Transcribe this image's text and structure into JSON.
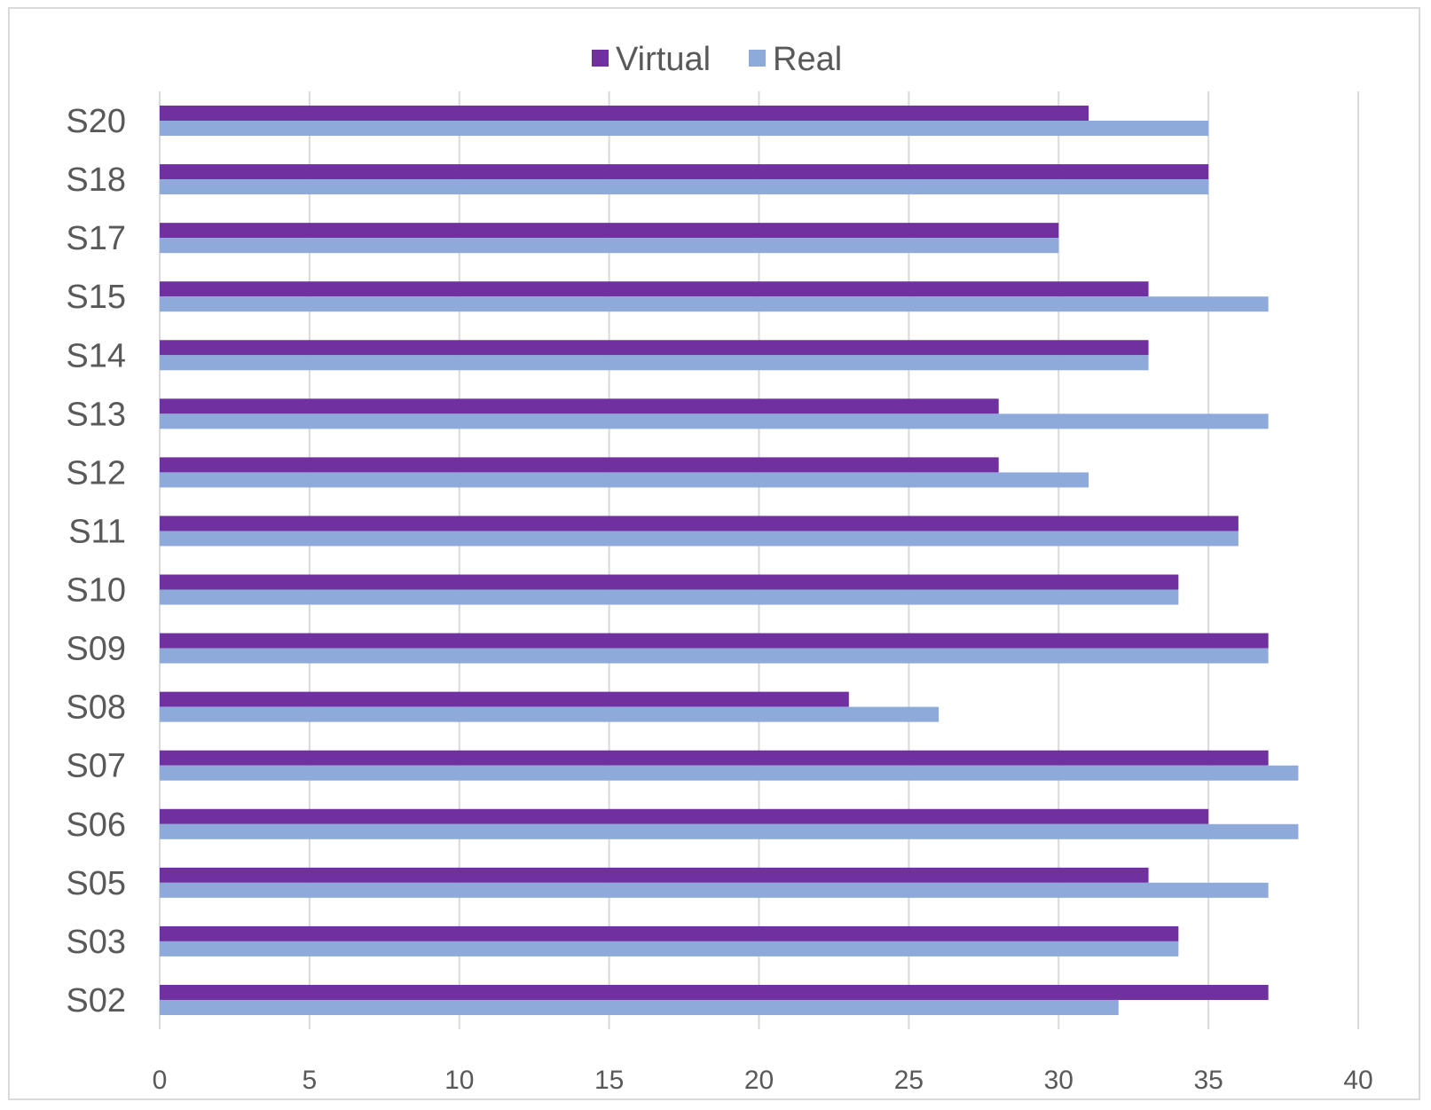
{
  "chart_data": {
    "type": "bar",
    "orientation": "horizontal",
    "categories": [
      "S20",
      "S18",
      "S17",
      "S15",
      "S14",
      "S13",
      "S12",
      "S11",
      "S10",
      "S09",
      "S08",
      "S07",
      "S06",
      "S05",
      "S03",
      "S02"
    ],
    "series": [
      {
        "name": "Virtual",
        "color": "#7030a0",
        "values": [
          31,
          35,
          30,
          33,
          33,
          28,
          28,
          36,
          34,
          37,
          23,
          37,
          35,
          33,
          34,
          37
        ]
      },
      {
        "name": "Real",
        "color": "#8eaadb",
        "values": [
          35,
          35,
          30,
          37,
          33,
          37,
          31,
          36,
          34,
          37,
          26,
          38,
          38,
          37,
          34,
          32
        ]
      }
    ],
    "xlim": [
      0,
      40
    ],
    "xticks": [
      0,
      5,
      10,
      15,
      20,
      25,
      30,
      35,
      40
    ],
    "grid": true,
    "legend_position": "top-center"
  }
}
